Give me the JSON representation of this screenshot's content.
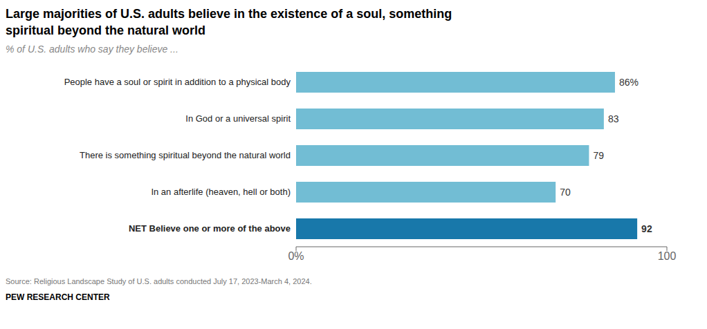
{
  "chart_data": {
    "type": "bar",
    "orientation": "horizontal",
    "title": [
      "Large majorities of U.S. adults believe in the existence of a soul, something",
      "spiritual beyond the natural world"
    ],
    "subtitle": "% of U.S. adults who say they believe ...",
    "categories": [
      "People have a soul or spirit in addition to a physical body",
      "In God or a universal spirit",
      "There is something spiritual beyond the natural world",
      "In an afterlife (heaven, hell or both)",
      "NET Believe one or more of the above"
    ],
    "values": [
      86,
      83,
      79,
      70,
      92
    ],
    "value_labels": [
      "86%",
      "83",
      "79",
      "70",
      "92"
    ],
    "data_labels": true,
    "colors": [
      "#72bdd4",
      "#72bdd4",
      "#72bdd4",
      "#72bdd4",
      "#1878aa"
    ],
    "xlim": [
      0,
      100
    ],
    "xticks": [
      {
        "value": 0,
        "label": "0%"
      },
      100
    ],
    "grid": false,
    "source": "Source: Religious Landscape Study of U.S. adults conducted July 17, 2023-March 4, 2024.",
    "footer": "PEW RESEARCH CENTER"
  }
}
